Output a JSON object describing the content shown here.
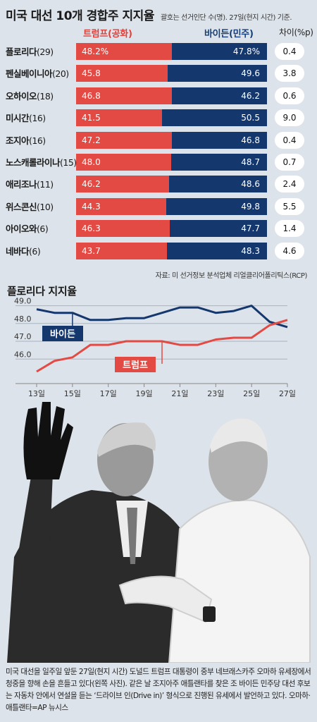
{
  "header": {
    "title": "미국 대선 10개 경합주 지지율",
    "note": "괄호는 선거인단 수(명). 27일(현지 시간) 기준."
  },
  "columns": {
    "trump": "트럼프(공화)",
    "biden": "바이든(민주)",
    "diff": "차이(%p)"
  },
  "colors": {
    "trump": "#e34a44",
    "biden": "#14376e"
  },
  "rows": [
    {
      "state": "플로리다",
      "ev": "(29)",
      "trump": "48.2%",
      "biden": "47.8%",
      "diff": "0.4",
      "t": 48.2,
      "b": 47.8
    },
    {
      "state": "펜실베이니아",
      "ev": "(20)",
      "trump": "45.8",
      "biden": "49.6",
      "diff": "3.8",
      "t": 45.8,
      "b": 49.6
    },
    {
      "state": "오하이오",
      "ev": "(18)",
      "trump": "46.8",
      "biden": "46.2",
      "diff": "0.6",
      "t": 46.8,
      "b": 46.2
    },
    {
      "state": "미시간",
      "ev": "(16)",
      "trump": "41.5",
      "biden": "50.5",
      "diff": "9.0",
      "t": 41.5,
      "b": 50.5
    },
    {
      "state": "조지아",
      "ev": "(16)",
      "trump": "47.2",
      "biden": "46.8",
      "diff": "0.4",
      "t": 47.2,
      "b": 46.8
    },
    {
      "state": "노스캐롤라이나",
      "ev": "(15)",
      "trump": "48.0",
      "biden": "48.7",
      "diff": "0.7",
      "t": 48.0,
      "b": 48.7
    },
    {
      "state": "애리조나",
      "ev": "(11)",
      "trump": "46.2",
      "biden": "48.6",
      "diff": "2.4",
      "t": 46.2,
      "b": 48.6
    },
    {
      "state": "위스콘신",
      "ev": "(10)",
      "trump": "44.3",
      "biden": "49.8",
      "diff": "5.5",
      "t": 44.3,
      "b": 49.8
    },
    {
      "state": "아이오와",
      "ev": "(6)",
      "trump": "46.3",
      "biden": "47.7",
      "diff": "1.4",
      "t": 46.3,
      "b": 47.7
    },
    {
      "state": "네바다",
      "ev": "(6)",
      "trump": "43.7",
      "biden": "48.3",
      "diff": "4.6",
      "t": 43.7,
      "b": 48.3
    }
  ],
  "source": "자료: 미 선거정보 분석업체 리얼클리어폴리틱스(RCP)",
  "chart_data": {
    "type": "line",
    "title": "플로리다 지지율",
    "x": [
      13,
      14,
      15,
      16,
      17,
      18,
      19,
      20,
      21,
      22,
      23,
      24,
      25,
      26,
      27
    ],
    "xtick_values": [
      13,
      15,
      17,
      19,
      21,
      23,
      25,
      27
    ],
    "xticks": [
      "13일",
      "15일",
      "17일",
      "19일",
      "21일",
      "23일",
      "25일",
      "27일"
    ],
    "yticks": [
      "49.0",
      "48.0",
      "47.0",
      "46.0"
    ],
    "ytick_values": [
      49.0,
      48.0,
      47.0,
      46.0
    ],
    "ylim": [
      45.1,
      49.3
    ],
    "grid": true,
    "series": [
      {
        "name": "바이든",
        "color": "#14376e",
        "values": [
          48.8,
          48.6,
          48.6,
          48.2,
          48.2,
          48.3,
          48.3,
          48.6,
          48.9,
          48.9,
          48.6,
          48.7,
          49.0,
          48.1,
          47.8
        ]
      },
      {
        "name": "트럼프",
        "color": "#e34a44",
        "values": [
          45.3,
          45.9,
          46.1,
          46.8,
          46.8,
          47.0,
          47.0,
          47.0,
          46.8,
          46.8,
          47.1,
          47.2,
          47.2,
          47.9,
          48.2
        ]
      }
    ]
  },
  "caption": "미국 대선을 일주일 앞둔 27일(현지 시간) 도널드 트럼프 대통령이 중부 네브래스카주 오마하 유세장에서 청중을 향해 손을 흔들고 있다(왼쪽 사진). 같은 날 조지아주 애틀랜타를 찾은 조 바이든 민주당 대선 후보는 자동차 안에서 연설을 듣는 ‘드라이브 인(Drive in)’ 형식으로 진행된 유세에서 발언하고 있다. 오마하·애틀랜타=AP 뉴시스"
}
